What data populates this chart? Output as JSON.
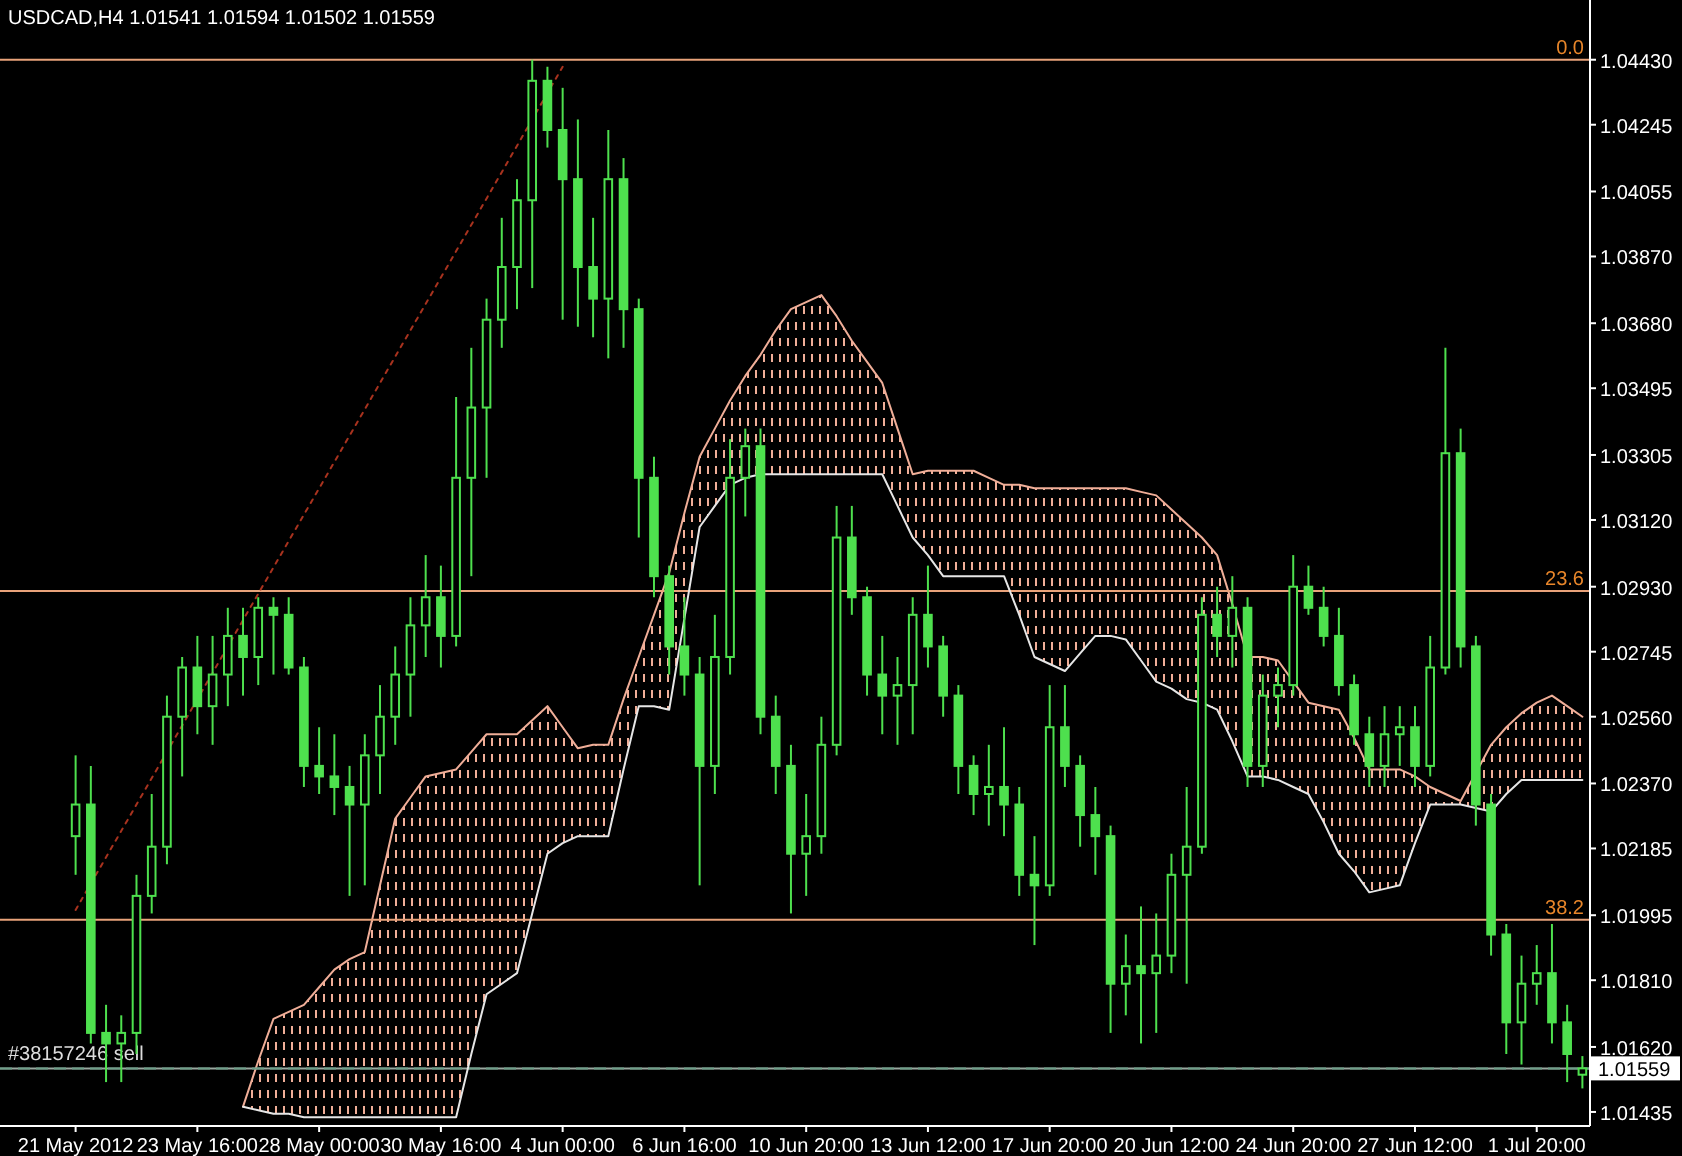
{
  "chart_data": {
    "type": "candlestick",
    "title": "USDCAD,H4 1.01541 1.01594 1.01502 1.01559",
    "color": "#4ee04e",
    "ylim": [
      1.01395,
      1.046
    ],
    "yticks": [
      {
        "value": 1.0443,
        "label": "1.04430"
      },
      {
        "value": 1.04245,
        "label": "1.04245"
      },
      {
        "value": 1.04055,
        "label": "1.04055"
      },
      {
        "value": 1.0387,
        "label": "1.03870"
      },
      {
        "value": 1.0368,
        "label": "1.03680"
      },
      {
        "value": 1.03495,
        "label": "1.03495"
      },
      {
        "value": 1.03305,
        "label": "1.03305"
      },
      {
        "value": 1.0312,
        "label": "1.03120"
      },
      {
        "value": 1.0293,
        "label": "1.02930"
      },
      {
        "value": 1.02745,
        "label": "1.02745"
      },
      {
        "value": 1.0256,
        "label": "1.02560"
      },
      {
        "value": 1.0237,
        "label": "1.02370"
      },
      {
        "value": 1.02185,
        "label": "1.02185"
      },
      {
        "value": 1.01995,
        "label": "1.01995"
      },
      {
        "value": 1.0181,
        "label": "1.01810"
      },
      {
        "value": 1.0162,
        "label": "1.01620"
      },
      {
        "value": 1.01435,
        "label": "1.01435"
      }
    ],
    "categories": [
      "21 May 2012",
      null,
      null,
      null,
      null,
      null,
      null,
      null,
      "23 May 16:00",
      null,
      null,
      null,
      null,
      null,
      null,
      null,
      "28 May 00:00",
      null,
      null,
      null,
      null,
      null,
      null,
      null,
      "30 May 16:00",
      null,
      null,
      null,
      null,
      null,
      null,
      null,
      "4 Jun 00:00",
      null,
      null,
      null,
      null,
      null,
      null,
      null,
      "6 Jun 16:00",
      null,
      null,
      null,
      null,
      null,
      null,
      null,
      "10 Jun 20:00",
      null,
      null,
      null,
      null,
      null,
      null,
      null,
      "13 Jun 12:00",
      null,
      null,
      null,
      null,
      null,
      null,
      null,
      "17 Jun 20:00",
      null,
      null,
      null,
      null,
      null,
      null,
      null,
      "20 Jun 12:00",
      null,
      null,
      null,
      null,
      null,
      null,
      null,
      "24 Jun 20:00",
      null,
      null,
      null,
      null,
      null,
      null,
      null,
      "27 Jun 12:00",
      null,
      null,
      null,
      null,
      null,
      null,
      null,
      "1 Jul 20:00",
      null,
      null,
      null
    ],
    "ohlc": [
      [
        1.0222,
        1.0245,
        1.0211,
        1.0231
      ],
      [
        1.0231,
        1.0242,
        1.0163,
        1.0166
      ],
      [
        1.0166,
        1.0174,
        1.0152,
        1.0163
      ],
      [
        1.0163,
        1.0171,
        1.0152,
        1.0166
      ],
      [
        1.0166,
        1.0211,
        1.016,
        1.0205
      ],
      [
        1.0205,
        1.0234,
        1.02,
        1.0219
      ],
      [
        1.0219,
        1.0262,
        1.0214,
        1.0256
      ],
      [
        1.0256,
        1.0273,
        1.0239,
        1.027
      ],
      [
        1.027,
        1.0279,
        1.0251,
        1.0259
      ],
      [
        1.0259,
        1.0279,
        1.0248,
        1.0268
      ],
      [
        1.0268,
        1.0287,
        1.0259,
        1.0279
      ],
      [
        1.0279,
        1.0287,
        1.0262,
        1.0273
      ],
      [
        1.0273,
        1.029,
        1.0265,
        1.0287
      ],
      [
        1.0287,
        1.029,
        1.0268,
        1.0285
      ],
      [
        1.0285,
        1.029,
        1.0268,
        1.027
      ],
      [
        1.027,
        1.0273,
        1.0236,
        1.0242
      ],
      [
        1.0242,
        1.0253,
        1.0234,
        1.0239
      ],
      [
        1.0239,
        1.0251,
        1.0228,
        1.0236
      ],
      [
        1.0236,
        1.0242,
        1.0205,
        1.0231
      ],
      [
        1.0231,
        1.0251,
        1.0208,
        1.0245
      ],
      [
        1.0245,
        1.0265,
        1.0234,
        1.0256
      ],
      [
        1.0256,
        1.0276,
        1.0248,
        1.0268
      ],
      [
        1.0268,
        1.029,
        1.0256,
        1.0282
      ],
      [
        1.0282,
        1.0302,
        1.0273,
        1.029
      ],
      [
        1.029,
        1.0299,
        1.027,
        1.0279
      ],
      [
        1.0279,
        1.0347,
        1.0276,
        1.0324
      ],
      [
        1.0324,
        1.0361,
        1.0296,
        1.0344
      ],
      [
        1.0344,
        1.0375,
        1.0324,
        1.0369
      ],
      [
        1.0369,
        1.0398,
        1.0361,
        1.0384
      ],
      [
        1.0384,
        1.0409,
        1.0372,
        1.0403
      ],
      [
        1.0403,
        1.0443,
        1.0378,
        1.0437
      ],
      [
        1.0437,
        1.0441,
        1.0418,
        1.0423
      ],
      [
        1.0423,
        1.0435,
        1.0369,
        1.0409
      ],
      [
        1.0409,
        1.0426,
        1.0367,
        1.0384
      ],
      [
        1.0384,
        1.0398,
        1.0364,
        1.0375
      ],
      [
        1.0375,
        1.0423,
        1.0358,
        1.0409
      ],
      [
        1.0409,
        1.0415,
        1.0361,
        1.0372
      ],
      [
        1.0372,
        1.0375,
        1.0307,
        1.0324
      ],
      [
        1.0324,
        1.033,
        1.029,
        1.0296
      ],
      [
        1.0296,
        1.0299,
        1.0268,
        1.0276
      ],
      [
        1.0276,
        1.029,
        1.0262,
        1.0268
      ],
      [
        1.0268,
        1.0273,
        1.0208,
        1.0242
      ],
      [
        1.0242,
        1.0285,
        1.0234,
        1.0273
      ],
      [
        1.0273,
        1.0335,
        1.0268,
        1.0324
      ],
      [
        1.0324,
        1.0338,
        1.0313,
        1.0333
      ],
      [
        1.0333,
        1.0338,
        1.0251,
        1.0256
      ],
      [
        1.0256,
        1.0262,
        1.0234,
        1.0242
      ],
      [
        1.0242,
        1.0248,
        1.02,
        1.0217
      ],
      [
        1.0217,
        1.0234,
        1.0205,
        1.0222
      ],
      [
        1.0222,
        1.0256,
        1.0217,
        1.0248
      ],
      [
        1.0248,
        1.0316,
        1.0245,
        1.0307
      ],
      [
        1.0307,
        1.0316,
        1.0285,
        1.029
      ],
      [
        1.029,
        1.0293,
        1.0262,
        1.0268
      ],
      [
        1.0268,
        1.0279,
        1.0251,
        1.0262
      ],
      [
        1.0262,
        1.0273,
        1.0248,
        1.0265
      ],
      [
        1.0265,
        1.029,
        1.0251,
        1.0285
      ],
      [
        1.0285,
        1.0299,
        1.027,
        1.0276
      ],
      [
        1.0276,
        1.0279,
        1.0256,
        1.0262
      ],
      [
        1.0262,
        1.0265,
        1.0234,
        1.0242
      ],
      [
        1.0242,
        1.0245,
        1.0228,
        1.0234
      ],
      [
        1.0234,
        1.0248,
        1.0225,
        1.0236
      ],
      [
        1.0236,
        1.0253,
        1.0222,
        1.0231
      ],
      [
        1.0231,
        1.0236,
        1.0205,
        1.0211
      ],
      [
        1.0211,
        1.0222,
        1.0191,
        1.0208
      ],
      [
        1.0208,
        1.0265,
        1.0205,
        1.0253
      ],
      [
        1.0253,
        1.0265,
        1.0236,
        1.0242
      ],
      [
        1.0242,
        1.0245,
        1.0219,
        1.0228
      ],
      [
        1.0228,
        1.0236,
        1.0211,
        1.0222
      ],
      [
        1.0222,
        1.0225,
        1.0166,
        1.018
      ],
      [
        1.018,
        1.0194,
        1.0171,
        1.0185
      ],
      [
        1.0185,
        1.0202,
        1.0163,
        1.0183
      ],
      [
        1.0183,
        1.02,
        1.0166,
        1.0188
      ],
      [
        1.0188,
        1.0217,
        1.0183,
        1.0211
      ],
      [
        1.0211,
        1.0236,
        1.018,
        1.0219
      ],
      [
        1.0219,
        1.029,
        1.0217,
        1.0285
      ],
      [
        1.0285,
        1.0293,
        1.0273,
        1.0279
      ],
      [
        1.0279,
        1.0296,
        1.027,
        1.0287
      ],
      [
        1.0287,
        1.029,
        1.0236,
        1.0242
      ],
      [
        1.0242,
        1.0268,
        1.0236,
        1.0262
      ],
      [
        1.0262,
        1.027,
        1.0253,
        1.0265
      ],
      [
        1.0265,
        1.0302,
        1.0262,
        1.0293
      ],
      [
        1.0293,
        1.0299,
        1.0285,
        1.0287
      ],
      [
        1.0287,
        1.0293,
        1.0276,
        1.0279
      ],
      [
        1.0279,
        1.0287,
        1.0262,
        1.0265
      ],
      [
        1.0265,
        1.0268,
        1.0248,
        1.0251
      ],
      [
        1.0251,
        1.0256,
        1.0236,
        1.0242
      ],
      [
        1.0242,
        1.0259,
        1.0236,
        1.0251
      ],
      [
        1.0251,
        1.0259,
        1.0242,
        1.0253
      ],
      [
        1.0253,
        1.0259,
        1.0236,
        1.0242
      ],
      [
        1.0242,
        1.0279,
        1.0239,
        1.027
      ],
      [
        1.027,
        1.0361,
        1.0268,
        1.0331
      ],
      [
        1.0331,
        1.0338,
        1.027,
        1.0276
      ],
      [
        1.0276,
        1.0279,
        1.0225,
        1.0231
      ],
      [
        1.0231,
        1.0234,
        1.0188,
        1.0194
      ],
      [
        1.0194,
        1.0197,
        1.016,
        1.0169
      ],
      [
        1.0169,
        1.0188,
        1.0157,
        1.018
      ],
      [
        1.018,
        1.0191,
        1.0174,
        1.0183
      ],
      [
        1.0183,
        1.0197,
        1.0163,
        1.0169
      ],
      [
        1.0169,
        1.0174,
        1.0152,
        1.016
      ],
      [
        1.01541,
        1.01594,
        1.01502,
        1.01559
      ]
    ],
    "series": [
      {
        "type": "line",
        "color": "#f0ae98",
        "values": [
          null,
          null,
          null,
          null,
          null,
          null,
          null,
          null,
          null,
          null,
          null,
          1.0145,
          1.0158,
          1.017,
          1.0172,
          1.0174,
          1.0179,
          1.0184,
          1.0187,
          1.0189,
          1.0208,
          1.0227,
          1.0233,
          1.0239,
          1.024,
          1.0241,
          1.0246,
          1.0251,
          1.0251,
          1.0251,
          1.0255,
          1.0259,
          1.0253,
          1.0247,
          1.0248,
          1.0248,
          1.0261,
          1.0273,
          1.0285,
          1.0297,
          1.0314,
          1.033,
          1.0338,
          1.0346,
          1.0353,
          1.0359,
          1.0366,
          1.0372,
          1.0374,
          1.0376,
          1.037,
          1.0363,
          1.0357,
          1.0351,
          1.0338,
          1.0325,
          1.0326,
          1.0326,
          1.0326,
          1.0326,
          1.0324,
          1.0322,
          1.0322,
          1.0321,
          1.0321,
          1.0321,
          1.0321,
          1.0321,
          1.0321,
          1.0321,
          1.032,
          1.0319,
          1.0315,
          1.0311,
          1.0307,
          1.0302,
          1.0288,
          1.0273,
          1.0273,
          1.0272,
          1.0266,
          1.026,
          1.0259,
          1.0258,
          1.025,
          1.0241,
          1.0241,
          1.0241,
          1.0239,
          1.0236,
          1.0234,
          1.0232,
          1.024,
          1.0248,
          1.0253,
          1.0257,
          1.026,
          1.0262,
          1.0259,
          1.0256
        ],
        "upper": [
          null,
          null,
          null,
          null,
          null,
          null,
          null,
          null,
          null,
          null,
          null,
          1.0145,
          1.0158,
          1.017,
          1.0172,
          1.0174,
          1.0179,
          1.0184,
          1.0187,
          1.0189,
          1.0208,
          1.0227,
          1.0233,
          1.0239,
          1.024,
          1.0241,
          1.0246,
          1.0251,
          1.0251,
          1.0251,
          1.0255,
          1.0259,
          1.0253,
          1.0247,
          1.0248,
          1.0248,
          1.0261,
          1.0273,
          1.0285,
          1.0297,
          1.0314,
          1.033,
          1.0338,
          1.0346,
          1.0353,
          1.0359,
          1.0366,
          1.0372,
          1.0374,
          1.0376,
          1.037,
          1.0363,
          1.0357,
          1.0351,
          1.0338,
          1.0325,
          1.0326,
          1.0326,
          1.0326,
          1.0326,
          1.0324,
          1.0322,
          1.0322,
          1.0321,
          1.0321,
          1.0321,
          1.0321,
          1.0321,
          1.0321,
          1.0321,
          1.032,
          1.0319,
          1.0315,
          1.0311,
          1.0307,
          1.0302,
          1.0288,
          1.0273,
          1.0273,
          1.0272,
          1.0266,
          1.026,
          1.0259,
          1.0258,
          1.025,
          1.0241,
          1.0241,
          1.0241,
          1.0239,
          1.0236,
          1.0234,
          1.0232,
          1.024,
          1.0248,
          1.0253,
          1.0257,
          1.026,
          1.0262,
          1.0259,
          1.0256
        ],
        "lower": [
          null,
          null,
          null,
          null,
          null,
          null,
          null,
          null,
          null,
          null,
          null,
          1.0145,
          1.0144,
          1.0143,
          1.0143,
          1.0142,
          1.0142,
          1.0142,
          1.0142,
          1.0142,
          1.0142,
          1.0142,
          1.0142,
          1.0142,
          1.0142,
          1.0142,
          1.016,
          1.0177,
          1.018,
          1.0183,
          1.02,
          1.0217,
          1.022,
          1.0222,
          1.0222,
          1.0222,
          1.0241,
          1.0259,
          1.0259,
          1.0258,
          1.0284,
          1.031,
          1.0316,
          1.0322,
          1.0324,
          1.0325,
          1.0325,
          1.0325,
          1.0325,
          1.0325,
          1.0325,
          1.0325,
          1.0325,
          1.0325,
          1.0316,
          1.0307,
          1.0302,
          1.0296,
          1.0296,
          1.0296,
          1.0296,
          1.0296,
          1.0285,
          1.0273,
          1.0271,
          1.0269,
          1.0274,
          1.0279,
          1.0279,
          1.0278,
          1.0272,
          1.0266,
          1.0264,
          1.0261,
          1.026,
          1.0258,
          1.0249,
          1.0239,
          1.0239,
          1.0238,
          1.0236,
          1.0234,
          1.0226,
          1.0217,
          1.0212,
          1.0206,
          1.0207,
          1.0208,
          1.022,
          1.0231,
          1.0231,
          1.0231,
          1.023,
          1.0229,
          1.0234,
          1.0238,
          1.0238,
          1.0238,
          1.0238,
          1.0238
        ]
      },
      {
        "type": "line",
        "color": "#e6e6e6",
        "values": [
          null,
          null,
          null,
          null,
          null,
          null,
          null,
          null,
          null,
          null,
          null,
          1.0145,
          1.0144,
          1.0143,
          1.0143,
          1.0142,
          1.0142,
          1.0142,
          1.0142,
          1.0142,
          1.0142,
          1.0142,
          1.0142,
          1.0142,
          1.0142,
          1.0142,
          1.016,
          1.0177,
          1.018,
          1.0183,
          1.02,
          1.0217,
          1.022,
          1.0222,
          1.0222,
          1.0222,
          1.0241,
          1.0259,
          1.0259,
          1.0258,
          1.0284,
          1.031,
          1.0316,
          1.0322,
          1.0324,
          1.0325,
          1.0325,
          1.0325,
          1.0325,
          1.0325,
          1.0325,
          1.0325,
          1.0325,
          1.0325,
          1.0316,
          1.0307,
          1.0302,
          1.0296,
          1.0296,
          1.0296,
          1.0296,
          1.0296,
          1.0285,
          1.0273,
          1.0271,
          1.0269,
          1.0274,
          1.0279,
          1.0279,
          1.0278,
          1.0272,
          1.0266,
          1.0264,
          1.0261,
          1.026,
          1.0258,
          1.0249,
          1.0239,
          1.0239,
          1.0238,
          1.0236,
          1.0234,
          1.0226,
          1.0217,
          1.0212,
          1.0206,
          1.0207,
          1.0208,
          1.022,
          1.0231,
          1.0231,
          1.0231,
          1.023,
          1.0229,
          1.0234,
          1.0238,
          1.0238,
          1.0238,
          1.0238,
          1.0238
        ]
      },
      {
        "type": "line",
        "color": "#a8321e",
        "line_style": "dotted",
        "values": [
          1.0201,
          null,
          null,
          null,
          null,
          null,
          null,
          null,
          null,
          null,
          null,
          null,
          null,
          null,
          null,
          null,
          null,
          null,
          null,
          null,
          null,
          null,
          null,
          null,
          null,
          null,
          null,
          null,
          null,
          null,
          null,
          null,
          1.0441,
          null,
          null,
          null,
          null,
          null,
          null,
          null,
          null,
          null,
          null,
          null,
          null,
          null,
          null,
          null,
          null,
          null,
          null,
          null,
          null,
          null,
          null,
          null,
          null,
          null,
          null,
          null,
          null,
          null,
          null,
          null,
          null,
          null,
          null,
          null,
          null,
          null,
          null,
          null,
          null,
          null,
          null,
          null,
          null,
          null,
          null,
          null,
          null,
          null,
          null,
          null,
          null,
          null,
          null,
          null,
          null,
          null,
          null,
          null,
          null,
          null,
          null,
          null,
          null,
          null,
          null,
          null
        ]
      }
    ],
    "ref_lines": [
      {
        "axis": "y",
        "value": 1.0443,
        "color": "#e8a27a"
      },
      {
        "axis": "y",
        "value": 1.02918,
        "color": "#e8a27a"
      },
      {
        "axis": "y",
        "value": 1.01982,
        "color": "#e8a27a"
      },
      {
        "axis": "y",
        "value": 1.01559,
        "label": "1.01559",
        "color": "#9aa8a0"
      },
      {
        "axis": "y",
        "value": 1.01559,
        "label": "#38157246 sell",
        "color": "#6f9f8a",
        "line_style": "dashed"
      }
    ],
    "annotations": [
      {
        "text": "0.0",
        "y": 1.0443
      },
      {
        "text": "23.6",
        "y": 1.02918
      },
      {
        "text": "38.2",
        "y": 1.01982
      }
    ]
  }
}
